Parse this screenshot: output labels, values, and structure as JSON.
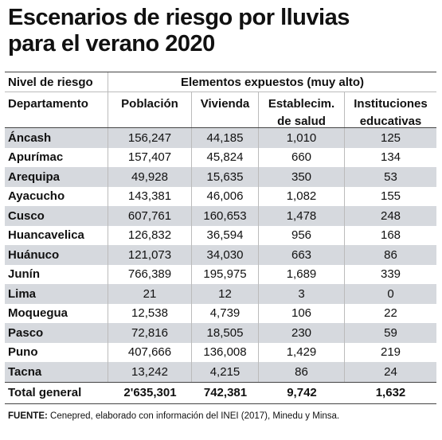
{
  "title_line1": "Escenarios de riesgo por lluvias",
  "title_line2": "para el verano 2020",
  "header": {
    "nivel": "Nivel de riesgo",
    "group": "Elementos expuestos (muy alto)",
    "departamento": "Departamento",
    "poblacion": "Población",
    "vivienda": "Vivienda",
    "establec_l1": "Establecim.",
    "establec_l2": "de salud",
    "instit_l1": "Instituciones",
    "instit_l2": "educativas"
  },
  "rows": [
    {
      "dep": "Áncash",
      "pob": "156,247",
      "viv": "44,185",
      "est": "1,010",
      "ins": "125"
    },
    {
      "dep": "Apurímac",
      "pob": "157,407",
      "viv": "45,824",
      "est": "660",
      "ins": "134"
    },
    {
      "dep": "Arequipa",
      "pob": "49,928",
      "viv": "15,635",
      "est": "350",
      "ins": "53"
    },
    {
      "dep": "Ayacucho",
      "pob": "143,381",
      "viv": "46,006",
      "est": "1,082",
      "ins": "155"
    },
    {
      "dep": "Cusco",
      "pob": "607,761",
      "viv": "160,653",
      "est": "1,478",
      "ins": "248"
    },
    {
      "dep": "Huancavelica",
      "pob": "126,832",
      "viv": "36,594",
      "est": "956",
      "ins": "168"
    },
    {
      "dep": "Huánuco",
      "pob": "121,073",
      "viv": "34,030",
      "est": "663",
      "ins": "86"
    },
    {
      "dep": "Junín",
      "pob": "766,389",
      "viv": "195,975",
      "est": "1,689",
      "ins": "339"
    },
    {
      "dep": "Lima",
      "pob": "21",
      "viv": "12",
      "est": "3",
      "ins": "0"
    },
    {
      "dep": "Moquegua",
      "pob": "12,538",
      "viv": "4,739",
      "est": "106",
      "ins": "22"
    },
    {
      "dep": "Pasco",
      "pob": "72,816",
      "viv": "18,505",
      "est": "230",
      "ins": "59"
    },
    {
      "dep": "Puno",
      "pob": "407,666",
      "viv": "136,008",
      "est": "1,429",
      "ins": "219"
    },
    {
      "dep": "Tacna",
      "pob": "13,242",
      "viv": "4,215",
      "est": "86",
      "ins": "24"
    }
  ],
  "total": {
    "dep": "Total general",
    "pob": "2'635,301",
    "viv": "742,381",
    "est": "9,742",
    "ins": "1,632"
  },
  "source_label": "FUENTE:",
  "source_text": " Cenepred, elaborado con información del INEI (2017), Minedu y Minsa."
}
